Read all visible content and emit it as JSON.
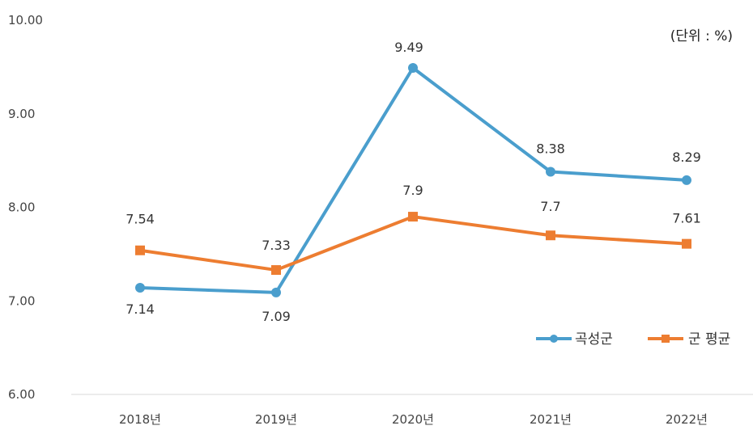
{
  "chart_data": {
    "type": "line",
    "unit_label": "(단위 : %)",
    "categories": [
      "2018년",
      "2019년",
      "2020년",
      "2021년",
      "2022년"
    ],
    "ylim": [
      6.0,
      10.0
    ],
    "yticks": [
      "6.00",
      "7.00",
      "8.00",
      "9.00",
      "10.00"
    ],
    "grid": false,
    "legend_position": "bottom-right",
    "series": [
      {
        "name": "곡성군",
        "color": "#4A9ECD",
        "marker": "circle",
        "values": [
          7.14,
          7.09,
          9.49,
          8.38,
          8.29
        ],
        "labels": [
          "7.14",
          "7.09",
          "9.49",
          "8.38",
          "8.29"
        ]
      },
      {
        "name": "군 평균",
        "color": "#ED7D31",
        "marker": "square",
        "values": [
          7.54,
          7.33,
          7.9,
          7.7,
          7.61
        ],
        "labels": [
          "7.54",
          "7.33",
          "7.9",
          "7.7",
          "7.61"
        ]
      }
    ]
  }
}
